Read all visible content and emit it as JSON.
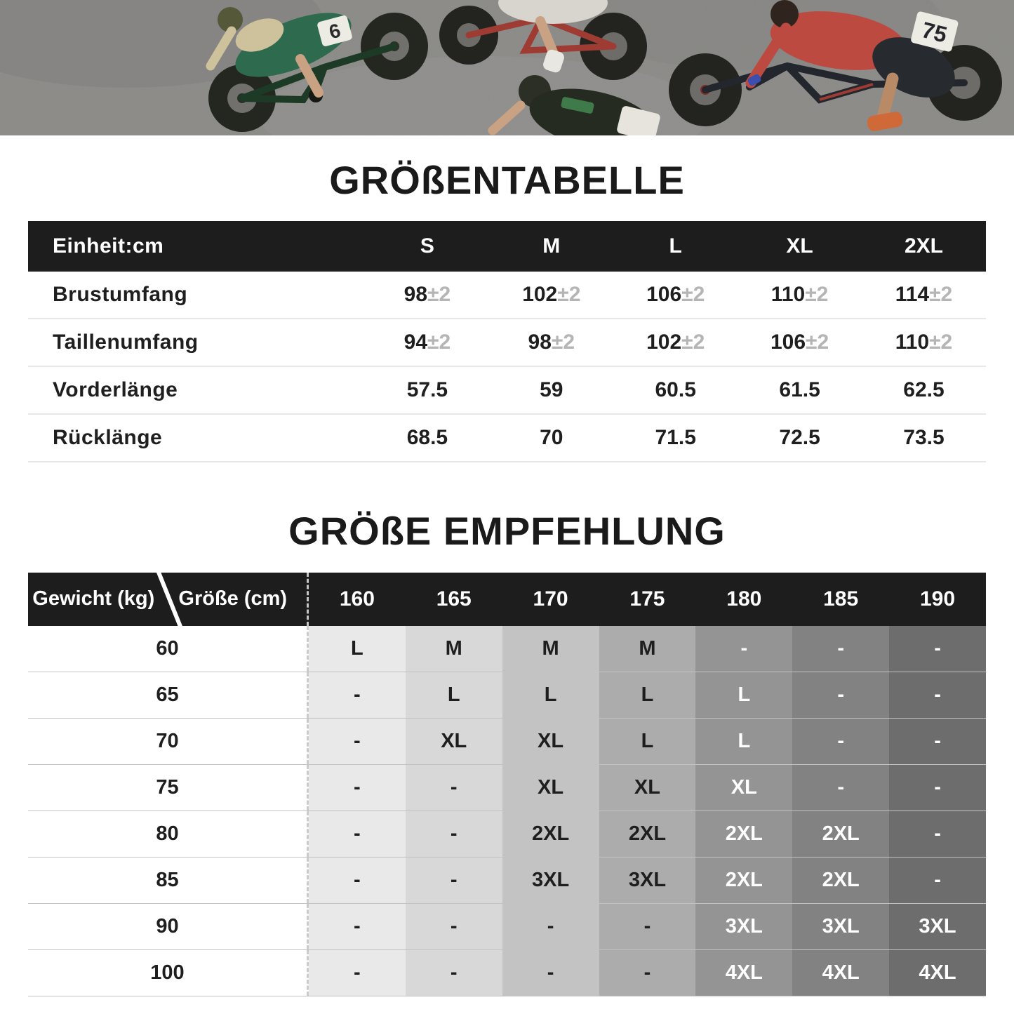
{
  "banner": {
    "asphalt_color": "#8f8e8c",
    "race_numbers": {
      "green_rider": "6",
      "red_rider": "75"
    }
  },
  "colors": {
    "header_bg": "#1d1d1d",
    "header_text": "#ffffff",
    "body_text": "#1f1f1f",
    "tolerance_text": "#b5b5b5"
  },
  "size_table": {
    "title": "GRÖßENTABELLE",
    "unit_label": "Einheit:cm",
    "columns": [
      "S",
      "M",
      "L",
      "XL",
      "2XL"
    ],
    "rows": [
      {
        "label": "Brustumfang",
        "values": [
          {
            "main": "98",
            "tol": "±2"
          },
          {
            "main": "102",
            "tol": "±2"
          },
          {
            "main": "106",
            "tol": "±2"
          },
          {
            "main": "110",
            "tol": "±2"
          },
          {
            "main": "114",
            "tol": "±2"
          }
        ]
      },
      {
        "label": "Taillenumfang",
        "values": [
          {
            "main": "94",
            "tol": "±2"
          },
          {
            "main": "98",
            "tol": "±2"
          },
          {
            "main": "102",
            "tol": "±2"
          },
          {
            "main": "106",
            "tol": "±2"
          },
          {
            "main": "110",
            "tol": "±2"
          }
        ]
      },
      {
        "label": "Vorderlänge",
        "values": [
          {
            "main": "57.5"
          },
          {
            "main": "59"
          },
          {
            "main": "60.5"
          },
          {
            "main": "61.5"
          },
          {
            "main": "62.5"
          }
        ]
      },
      {
        "label": "Rücklänge",
        "values": [
          {
            "main": "68.5"
          },
          {
            "main": "70"
          },
          {
            "main": "71.5"
          },
          {
            "main": "72.5"
          },
          {
            "main": "73.5"
          }
        ]
      }
    ]
  },
  "recommendation_table": {
    "title": "GRÖßE EMPFEHLUNG",
    "corner": {
      "row_axis": "Gewicht (kg)",
      "col_axis": "Größe (cm)"
    },
    "columns": [
      "160",
      "165",
      "170",
      "175",
      "180",
      "185",
      "190"
    ],
    "column_shades": [
      "#e9e9e9",
      "#d8d8d8",
      "#c3c3c3",
      "#acacac",
      "#949494",
      "#828282",
      "#6d6d6d"
    ],
    "light_text_from_column": 4,
    "rows": [
      {
        "label": "60",
        "cells": [
          "L",
          "M",
          "M",
          "M",
          "-",
          "-",
          "-"
        ]
      },
      {
        "label": "65",
        "cells": [
          "-",
          "L",
          "L",
          "L",
          "L",
          "-",
          "-"
        ]
      },
      {
        "label": "70",
        "cells": [
          "-",
          "XL",
          "XL",
          "L",
          "L",
          "-",
          "-"
        ]
      },
      {
        "label": "75",
        "cells": [
          "-",
          "-",
          "XL",
          "XL",
          "XL",
          "-",
          "-"
        ]
      },
      {
        "label": "80",
        "cells": [
          "-",
          "-",
          "2XL",
          "2XL",
          "2XL",
          "2XL",
          "-"
        ]
      },
      {
        "label": "85",
        "cells": [
          "-",
          "-",
          "3XL",
          "3XL",
          "2XL",
          "2XL",
          "-"
        ]
      },
      {
        "label": "90",
        "cells": [
          "-",
          "-",
          "-",
          "-",
          "3XL",
          "3XL",
          "3XL"
        ]
      },
      {
        "label": "100",
        "cells": [
          "-",
          "-",
          "-",
          "-",
          "4XL",
          "4XL",
          "4XL"
        ]
      }
    ]
  }
}
